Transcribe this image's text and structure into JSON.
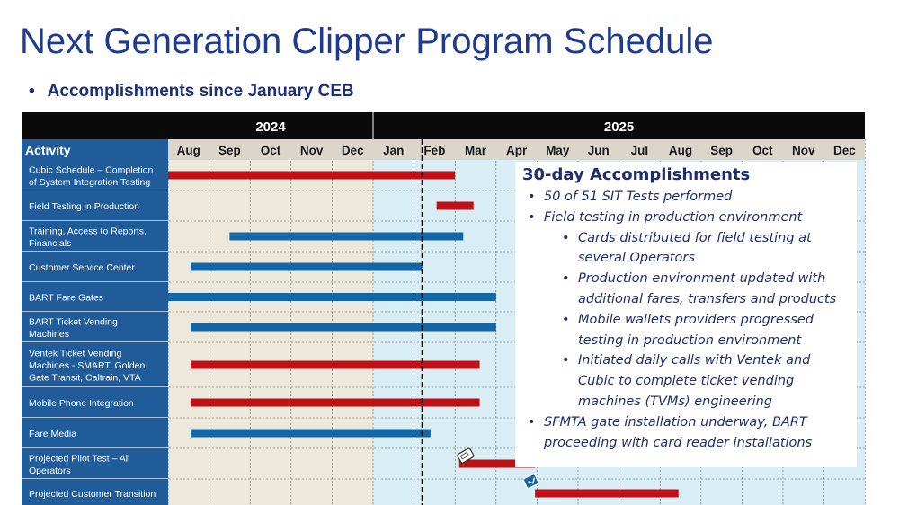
{
  "slide": {
    "title": "Next Generation Clipper Program Schedule",
    "subtitle": "Accomplishments since January CEB",
    "bullet": "•"
  },
  "gantt": {
    "activity_header": "Activity",
    "years": [
      {
        "label": "2024",
        "months": 5
      },
      {
        "label": "2025",
        "months": 12
      }
    ],
    "months": [
      "Aug",
      "Sep",
      "Oct",
      "Nov",
      "Dec",
      "Jan",
      "Feb",
      "Mar",
      "Apr",
      "May",
      "Jun",
      "Jul",
      "Aug",
      "Sep",
      "Oct",
      "Nov",
      "Dec"
    ],
    "colors": {
      "header_bg": "#0a0a0a",
      "header_text": "#ffffff",
      "activity_bg": "#1f5c99",
      "activity_text": "#ffffff",
      "month_header_bg": "#dad6cc",
      "month_text": "#1a1a1a",
      "bg_2024": "#ece8dc",
      "bg_2025": "#d9eef4",
      "bar_red": "#bf1016",
      "bar_blue": "#1467a6",
      "today_line": "#000000",
      "grid": "#ffffff"
    },
    "today_position_month": 6.2,
    "activities": [
      {
        "label_lines": [
          "Cubic Schedule – Completion",
          "of System Integration Testing"
        ],
        "bar_color": "red",
        "start": 0.0,
        "end": 7.0
      },
      {
        "label_lines": [
          "Field Testing in Production"
        ],
        "bar_color": "red",
        "start": 6.55,
        "end": 7.45
      },
      {
        "label_lines": [
          "Training, Access to Reports,",
          "Financials"
        ],
        "bar_color": "blue",
        "start": 1.5,
        "end": 7.2
      },
      {
        "label_lines": [
          "Customer Service Center"
        ],
        "bar_color": "blue",
        "start": 0.55,
        "end": 6.2
      },
      {
        "label_lines": [
          "BART Fare Gates"
        ],
        "bar_color": "blue",
        "start": 0.0,
        "end": 8.0
      },
      {
        "label_lines": [
          "BART Ticket Vending",
          "Machines"
        ],
        "bar_color": "blue",
        "start": 0.55,
        "end": 8.0
      },
      {
        "label_lines": [
          "Ventek Ticket Vending",
          "Machines - SMART, Golden",
          "Gate Transit, Caltrain, VTA"
        ],
        "bar_color": "red",
        "start": 0.55,
        "end": 7.6
      },
      {
        "label_lines": [
          "Mobile Phone Integration"
        ],
        "bar_color": "red",
        "start": 0.55,
        "end": 7.6
      },
      {
        "label_lines": [
          "Fare Media"
        ],
        "bar_color": "blue",
        "start": 0.55,
        "end": 6.4
      },
      {
        "label_lines": [
          "Projected Pilot Test – All",
          "Operators"
        ],
        "bar_color": "red",
        "start": 7.1,
        "end": 8.95
      },
      {
        "label_lines": [
          "Projected Customer Transition"
        ],
        "bar_color": "red",
        "start": 8.95,
        "end": 12.45
      }
    ]
  },
  "callout": {
    "title": "30-day Accomplishments",
    "items": [
      {
        "level": 1,
        "text": "50 of 51 SIT Tests performed"
      },
      {
        "level": 1,
        "text": "Field testing in production environment"
      },
      {
        "level": 2,
        "text": "Cards distributed for field testing at several Operators"
      },
      {
        "level": 2,
        "text": "Production environment updated with additional fares, transfers and products"
      },
      {
        "level": 2,
        "text": "Mobile wallets providers progressed testing in production environment"
      },
      {
        "level": 2,
        "text": "Initiated daily calls with Ventek and Cubic to complete ticket vending machines (TVMs) engineering"
      },
      {
        "level": 1,
        "text": "SFMTA gate installation underway, BART proceeding with card reader installations"
      }
    ]
  }
}
